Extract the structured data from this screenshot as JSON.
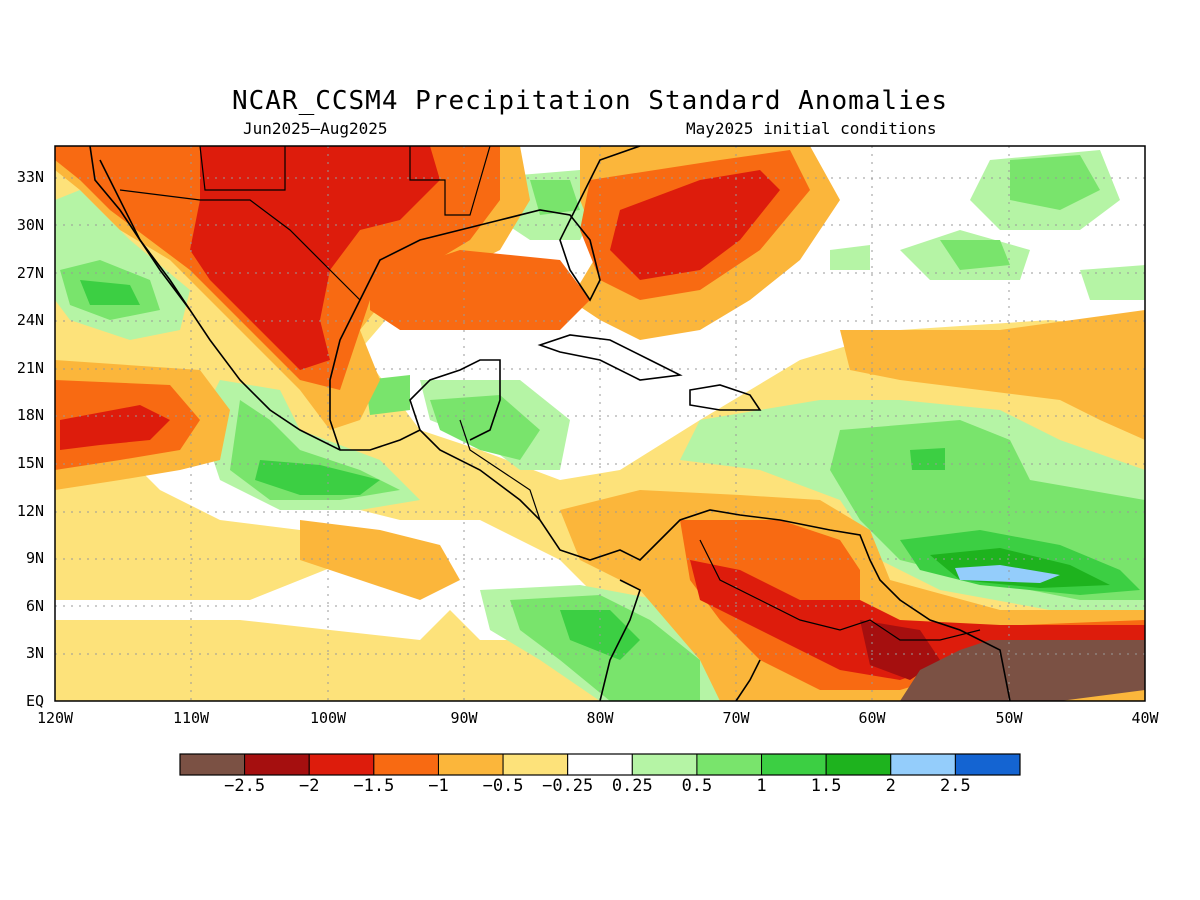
{
  "title": "NCAR_CCSM4 Precipitation Standard Anomalies",
  "subtitle_left": "Jun2025–Aug2025",
  "subtitle_right": "May2025 initial conditions",
  "lat_labels": [
    "33N",
    "30N",
    "27N",
    "24N",
    "21N",
    "18N",
    "15N",
    "12N",
    "9N",
    "6N",
    "3N",
    "EQ"
  ],
  "lon_labels": [
    "120W",
    "110W",
    "100W",
    "90W",
    "80W",
    "70W",
    "60W",
    "50W",
    "40W"
  ],
  "colorbar": {
    "colors": [
      "#7b5144",
      "#a50f0f",
      "#dd1c0c",
      "#f86a12",
      "#fbb63b",
      "#fde27a",
      "#ffffff",
      "#b5f4a5",
      "#79e46c",
      "#3ccf43",
      "#1eb31e",
      "#94cdfb",
      "#1464d2"
    ],
    "labels": [
      "−2.5",
      "−2",
      "−1.5",
      "−1",
      "−0.5",
      "−0.25",
      "0.25",
      "0.5",
      "1",
      "1.5",
      "2",
      "2.5"
    ]
  }
}
